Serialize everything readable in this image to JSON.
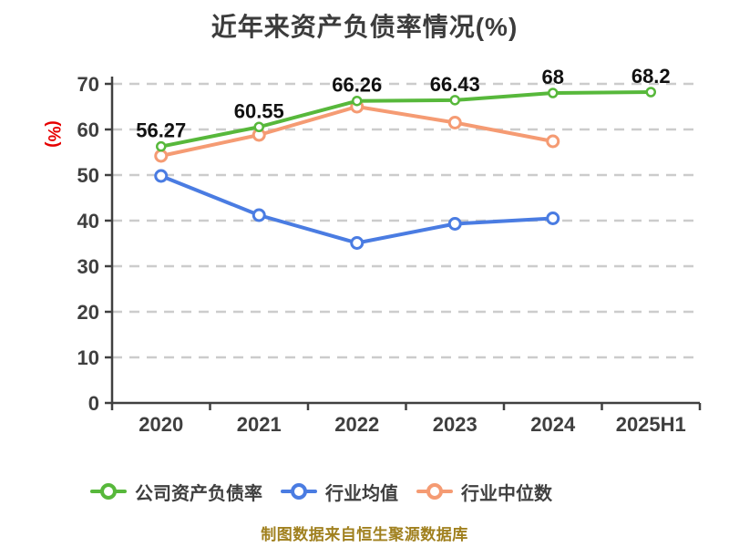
{
  "title": "近年来资产负债率情况(%)",
  "y_axis_label": "(%)",
  "footer": "制图数据来自恒生聚源数据库",
  "colors": {
    "company": "#57b83b",
    "industry_avg": "#4a7ce2",
    "industry_median": "#f59b73",
    "axis": "#404040",
    "grid": "#cccccc",
    "title_text": "#3c3c3c",
    "tick_text": "#3f3f3f",
    "data_label": "#111111",
    "y_unit_red": "#e60000",
    "footer_gold": "#a0801e"
  },
  "legend": {
    "items": [
      {
        "label": "公司资产负债率",
        "color_key": "company"
      },
      {
        "label": "行业均值",
        "color_key": "industry_avg"
      },
      {
        "label": "行业中位数",
        "color_key": "industry_median"
      }
    ]
  },
  "chart_data": {
    "type": "line",
    "title": "近年来资产负债率情况(%)",
    "xlabel": "",
    "ylabel": "(%)",
    "categories": [
      "2020",
      "2021",
      "2022",
      "2023",
      "2024",
      "2025H1"
    ],
    "y_ticks": [
      0,
      10,
      20,
      30,
      40,
      50,
      60,
      70
    ],
    "ylim": [
      0,
      70
    ],
    "grid": "horizontal-dashed",
    "legend_position": "bottom",
    "series": [
      {
        "name": "公司资产负债率",
        "color_key": "company",
        "values": [
          56.27,
          60.55,
          66.26,
          66.43,
          68,
          68.2
        ],
        "point_labels": [
          "56.27",
          "60.55",
          "66.26",
          "66.43",
          "68",
          "68.2"
        ]
      },
      {
        "name": "行业均值",
        "color_key": "industry_avg",
        "values": [
          49.8,
          41.2,
          35.1,
          39.3,
          40.5,
          null
        ],
        "point_labels": []
      },
      {
        "name": "行业中位数",
        "color_key": "industry_median",
        "values": [
          54.2,
          58.8,
          65.0,
          61.5,
          57.4,
          null
        ],
        "point_labels": []
      }
    ]
  }
}
